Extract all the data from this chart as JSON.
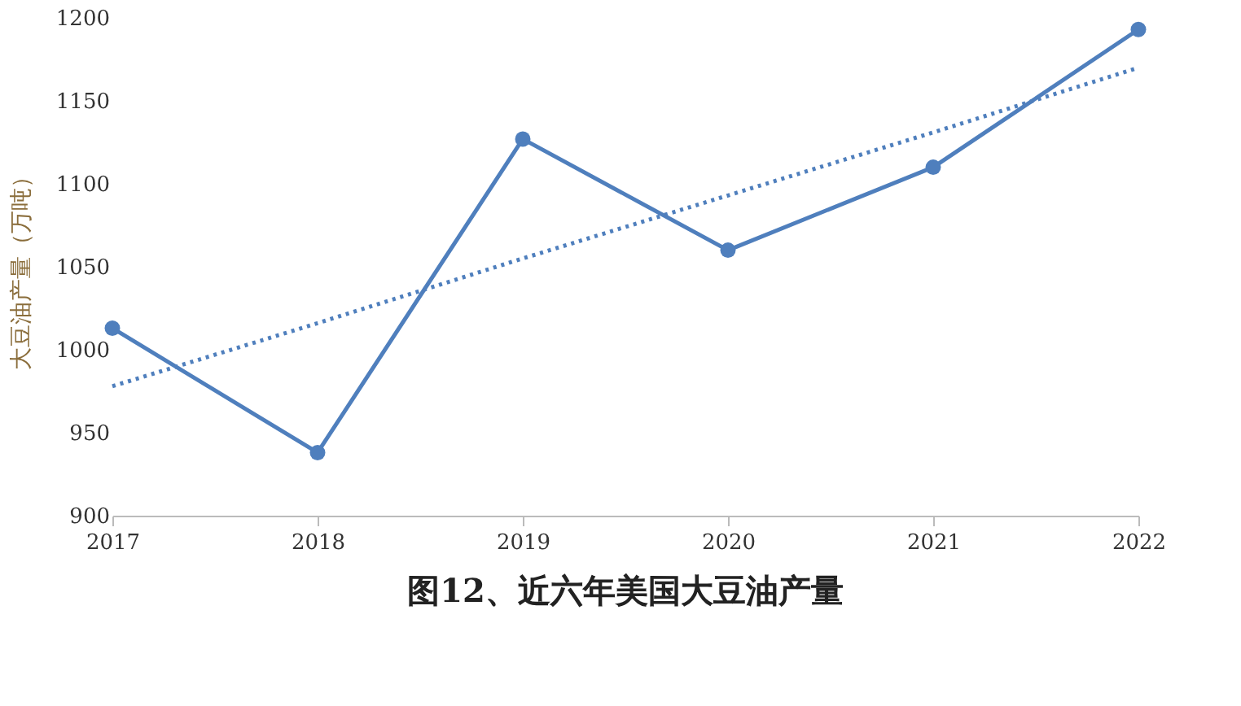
{
  "chart_data": {
    "type": "line",
    "title": "图12、近六年美国大豆油产量",
    "ylabel": "大豆油产量（万吨）",
    "categories": [
      "2017",
      "2018",
      "2019",
      "2020",
      "2021",
      "2022"
    ],
    "series": [
      {
        "color": "#4f7fbd",
        "values": [
          1013,
          938,
          1127,
          1060,
          1110,
          1193
        ],
        "marker": "circle",
        "line_style": "solid"
      },
      {
        "color": "#4f7fbd",
        "values": [
          978,
          1016,
          1055,
          1093,
          1131,
          1170
        ],
        "marker": "none",
        "line_style": "dotted"
      }
    ],
    "ylim": [
      900,
      1200
    ],
    "yticks": [
      900,
      950,
      1000,
      1050,
      1100,
      1150,
      1200
    ],
    "grid": false
  }
}
